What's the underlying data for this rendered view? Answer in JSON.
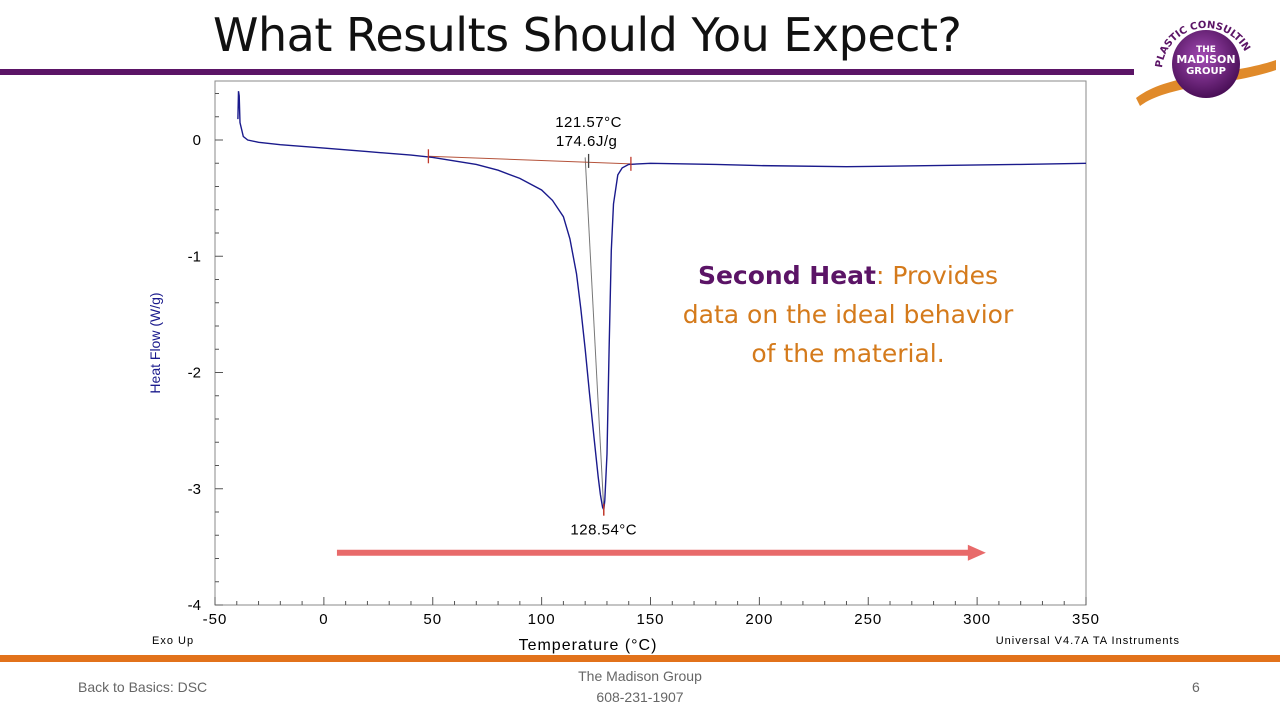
{
  "slide": {
    "title": "What Results Should You Expect?",
    "footer_left": "Back to Basics: DSC",
    "footer_center_line1": "The Madison Group",
    "footer_center_line2": "608-231-1907",
    "page_number": "6"
  },
  "logo": {
    "arc_text": "PLASTIC CONSULTING ENGINEERS",
    "line1": "THE",
    "line2": "MADISON",
    "line3": "GROUP"
  },
  "callout": {
    "bold": "Second Heat",
    "colon": ":",
    "rest": " Provides data on the ideal behavior of the material."
  },
  "colors": {
    "purple": "#5b1466",
    "orange": "#e2721b",
    "curve": "#1a1a8c",
    "baseline": "#b5533b",
    "arrow": "#e86a6a"
  },
  "chart_data": {
    "type": "line",
    "xlabel": "Temperature (°C)",
    "ylabel": "Heat Flow (W/g)",
    "xlim": [
      -50,
      350
    ],
    "ylim": [
      -4,
      0.5
    ],
    "x_ticks": [
      "-50",
      "0",
      "50",
      "100",
      "150",
      "200",
      "250",
      "300",
      "350"
    ],
    "y_ticks": [
      "0",
      "-1",
      "-2",
      "-3",
      "-4"
    ],
    "note_left": "Exo Up",
    "note_right": "Universal V4.7A TA Instruments",
    "series": [
      {
        "x": [
          -39.5,
          -39.2,
          -38.9,
          -38.5,
          -37,
          -35,
          -30,
          -20,
          0,
          20,
          40,
          50,
          60,
          70,
          80,
          90,
          100,
          105,
          110,
          113,
          116,
          118,
          120,
          122,
          124,
          126,
          127,
          128,
          128.54,
          129,
          130,
          131,
          132,
          133,
          135,
          137,
          140,
          150,
          180,
          200,
          240,
          280,
          320,
          350
        ],
        "y": [
          0.18,
          0.42,
          0.38,
          0.15,
          0.03,
          0.0,
          -0.02,
          -0.04,
          -0.07,
          -0.1,
          -0.13,
          -0.15,
          -0.18,
          -0.21,
          -0.26,
          -0.33,
          -0.43,
          -0.52,
          -0.66,
          -0.85,
          -1.15,
          -1.45,
          -1.8,
          -2.18,
          -2.55,
          -2.9,
          -3.05,
          -3.16,
          -3.18,
          -3.1,
          -2.7,
          -1.8,
          -0.95,
          -0.55,
          -0.3,
          -0.24,
          -0.21,
          -0.2,
          -0.21,
          -0.22,
          -0.23,
          -0.22,
          -0.21,
          -0.2
        ]
      }
    ],
    "baseline": {
      "x": [
        48,
        141
      ],
      "y": [
        -0.14,
        -0.205
      ]
    },
    "baseline_markers": {
      "x": [
        48,
        121.57,
        141
      ],
      "y": [
        -0.14,
        -0.18,
        -0.205
      ]
    },
    "onset_line": {
      "x": [
        120,
        128.54
      ],
      "y": [
        -0.15,
        -3.18
      ]
    },
    "annotations": {
      "onset_temp": "121.57°C",
      "enthalpy": "174.6J/g",
      "peak_temp": "128.54°C"
    },
    "arrow": {
      "x_start": 6,
      "x_end": 304,
      "y": -3.55
    }
  }
}
